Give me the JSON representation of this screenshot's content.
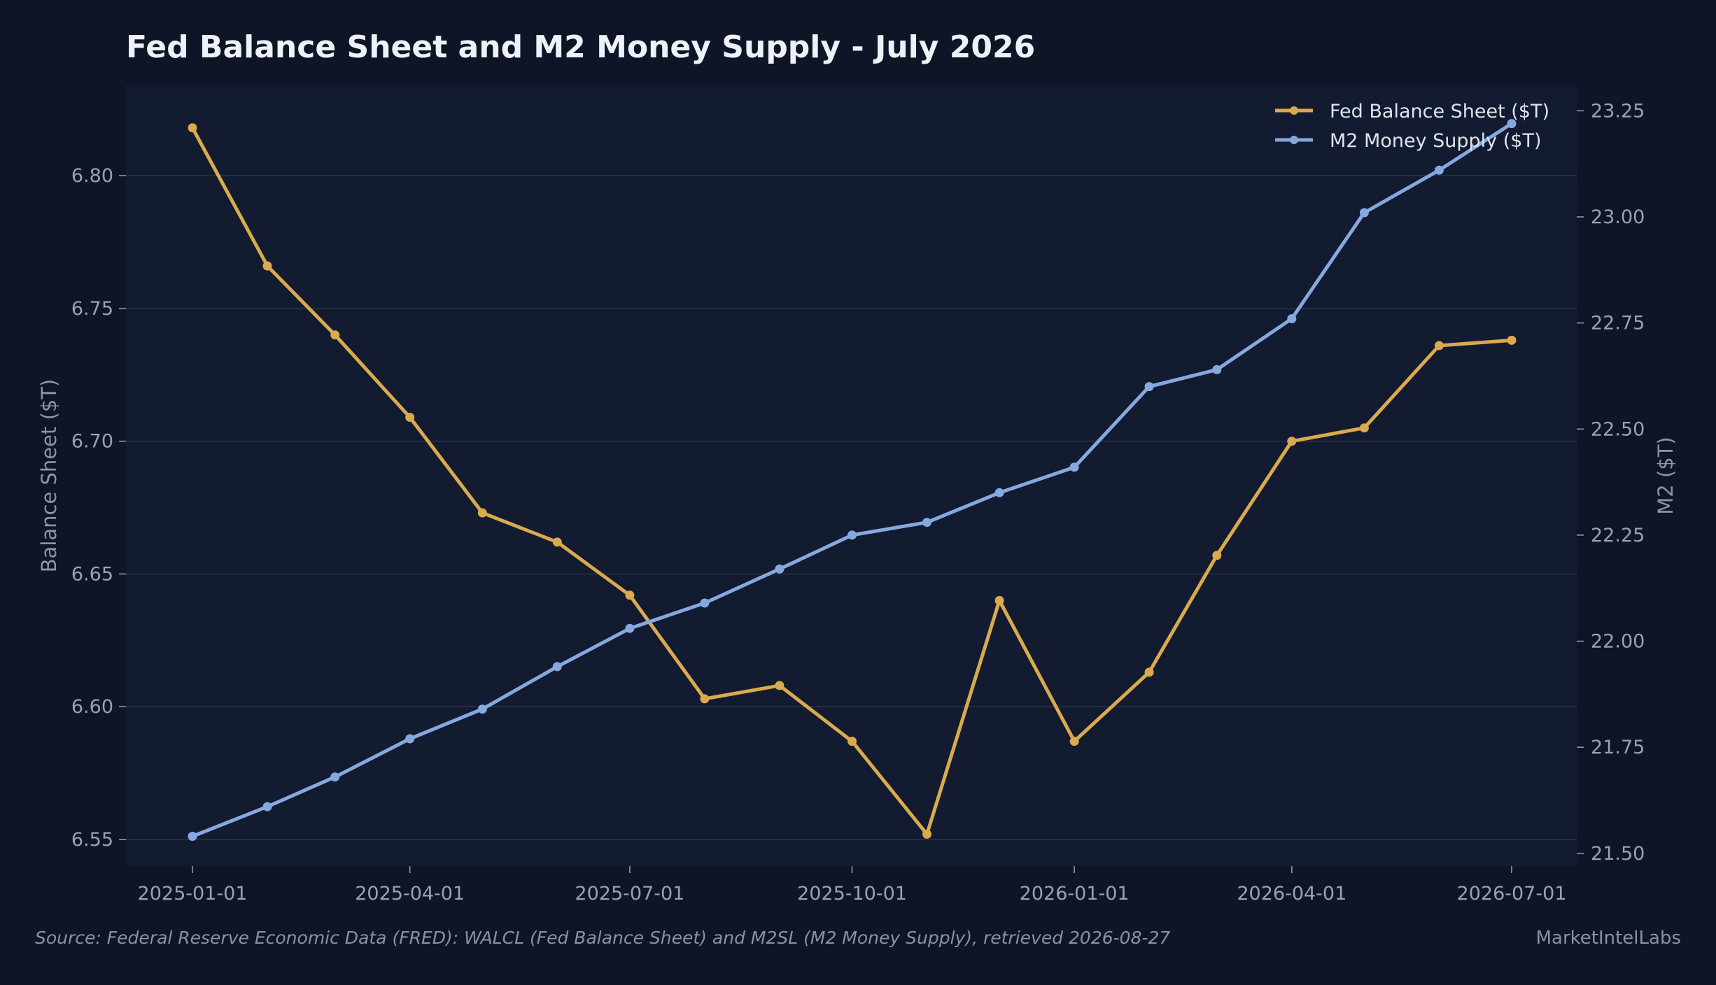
{
  "chart_data": {
    "type": "line",
    "title": "Fed Balance Sheet and M2 Money Supply - July 2026",
    "x": [
      "2025-01-01",
      "2025-02-01",
      "2025-03-01",
      "2025-04-01",
      "2025-05-01",
      "2025-06-01",
      "2025-07-01",
      "2025-08-01",
      "2025-09-01",
      "2025-10-01",
      "2025-11-01",
      "2025-12-01",
      "2026-01-01",
      "2026-02-01",
      "2026-03-01",
      "2026-04-01",
      "2026-05-01",
      "2026-06-01",
      "2026-07-01"
    ],
    "x_ticks": [
      "2025-01-01",
      "2025-04-01",
      "2025-07-01",
      "2025-10-01",
      "2026-01-01",
      "2026-04-01",
      "2026-07-01"
    ],
    "ylabel_left": "Balance Sheet ($T)",
    "ylabel_right": "M2 ($T)",
    "ylim_left": [
      6.54,
      6.834
    ],
    "ylim_right": [
      21.47,
      23.31
    ],
    "yticks_left": [
      "6.55",
      "6.60",
      "6.65",
      "6.70",
      "6.75",
      "6.80"
    ],
    "yticks_right": [
      "21.50",
      "21.75",
      "22.00",
      "22.25",
      "22.50",
      "22.75",
      "23.00",
      "23.25"
    ],
    "series": [
      {
        "name": "Fed Balance Sheet ($T)",
        "axis": "left",
        "color": "#d9aa4e",
        "values": [
          6.818,
          6.766,
          6.74,
          6.709,
          6.673,
          6.662,
          6.642,
          6.603,
          6.608,
          6.587,
          6.552,
          6.64,
          6.587,
          6.613,
          6.657,
          6.7,
          6.705,
          6.736,
          6.738
        ]
      },
      {
        "name": "M2 Money Supply ($T)",
        "axis": "right",
        "color": "#86a8e0",
        "values": [
          21.54,
          21.61,
          21.68,
          21.77,
          21.84,
          21.94,
          22.03,
          22.09,
          22.17,
          22.25,
          22.28,
          22.35,
          22.41,
          22.6,
          22.64,
          22.76,
          23.01,
          23.11,
          23.22
        ]
      }
    ],
    "grid": true,
    "legend": "top-right"
  },
  "footer": {
    "source": "Source: Federal Reserve Economic Data (FRED): WALCL (Fed Balance Sheet) and M2SL (M2 Money Supply), retrieved 2026-08-27",
    "brand": "MarketIntelLabs"
  },
  "colors": {
    "background": "#0e1526",
    "plot_background": "#121b2f",
    "grid": "#2a3347"
  }
}
